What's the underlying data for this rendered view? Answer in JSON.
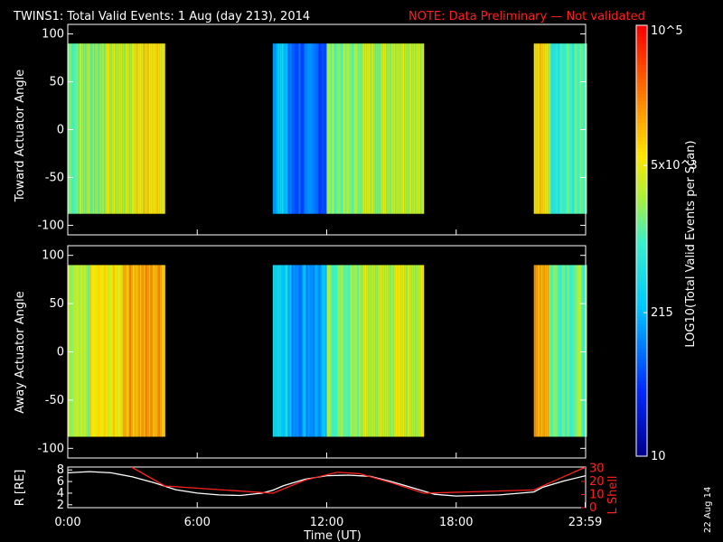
{
  "header": {
    "title": "TWINS1: Total Valid Events:  1 Aug (day 213), 2014",
    "note": "NOTE: Data Preliminary — Not validated"
  },
  "stamp": "22 Aug 14",
  "colorbar": {
    "label": "LOG10(Total Valid Events per Scan)",
    "ticks": [
      {
        "text": "10",
        "value": 10
      },
      {
        "text": "215",
        "value": 215
      },
      {
        "text": "5x10^3",
        "value": 5000
      },
      {
        "text": "10^5",
        "value": 100000
      }
    ],
    "scale": "log",
    "range": [
      10,
      100000
    ]
  },
  "chart_data": [
    {
      "type": "heatmap",
      "ylabel": "Toward Actuator Angle",
      "xlabel": "",
      "ylim": [
        -110,
        110
      ],
      "xlim_hours": [
        0,
        24
      ],
      "yticks": [
        100,
        50,
        0,
        -50,
        -100
      ],
      "data_angle_range": [
        -88,
        90
      ],
      "segments": [
        {
          "start_hour": 0.0,
          "end_hour": 0.55,
          "level": 0.55
        },
        {
          "start_hour": 0.55,
          "end_hour": 1.6,
          "level": 0.58
        },
        {
          "start_hour": 1.6,
          "end_hour": 3.0,
          "level": 0.63
        },
        {
          "start_hour": 3.0,
          "end_hour": 4.5,
          "level": 0.7
        },
        {
          "start_hour": 9.5,
          "end_hour": 10.2,
          "level": 0.35
        },
        {
          "start_hour": 10.2,
          "end_hour": 12.0,
          "level": 0.22
        },
        {
          "start_hour": 12.0,
          "end_hour": 13.5,
          "level": 0.56
        },
        {
          "start_hour": 13.5,
          "end_hour": 15.0,
          "level": 0.62
        },
        {
          "start_hour": 15.0,
          "end_hour": 16.5,
          "level": 0.65
        },
        {
          "start_hour": 21.6,
          "end_hour": 22.3,
          "level": 0.7
        },
        {
          "start_hour": 22.3,
          "end_hour": 24.0,
          "level": 0.5
        }
      ]
    },
    {
      "type": "heatmap",
      "ylabel": "Away Actuator Angle",
      "xlabel": "",
      "ylim": [
        -110,
        110
      ],
      "xlim_hours": [
        0,
        24
      ],
      "yticks": [
        100,
        50,
        0,
        -50,
        -100
      ],
      "data_angle_range": [
        -88,
        90
      ],
      "segments": [
        {
          "start_hour": 0.0,
          "end_hour": 1.0,
          "level": 0.58
        },
        {
          "start_hour": 1.0,
          "end_hour": 2.5,
          "level": 0.68
        },
        {
          "start_hour": 2.5,
          "end_hour": 4.5,
          "level": 0.78
        },
        {
          "start_hour": 9.5,
          "end_hour": 10.2,
          "level": 0.42
        },
        {
          "start_hour": 10.2,
          "end_hour": 12.0,
          "level": 0.3
        },
        {
          "start_hour": 12.0,
          "end_hour": 13.5,
          "level": 0.55
        },
        {
          "start_hour": 13.5,
          "end_hour": 15.0,
          "level": 0.62
        },
        {
          "start_hour": 15.0,
          "end_hour": 16.5,
          "level": 0.64
        },
        {
          "start_hour": 21.6,
          "end_hour": 22.3,
          "level": 0.8
        },
        {
          "start_hour": 22.3,
          "end_hour": 24.0,
          "level": 0.55
        }
      ]
    },
    {
      "type": "line",
      "xlabel": "Time (UT)",
      "ylabel": "R [RE]",
      "y2label": "L Shell",
      "xticks": [
        "0:00",
        "6:00",
        "12:00",
        "18:00",
        "23:59"
      ],
      "xtick_hours": [
        0,
        6,
        12,
        18,
        23.98
      ],
      "yticks_left": [
        2,
        4,
        6,
        8
      ],
      "yticks_right": [
        0,
        10,
        20,
        30
      ],
      "ylim_left": [
        1.5,
        8.5
      ],
      "ylim_right": [
        0,
        31
      ],
      "series": [
        {
          "name": "R",
          "color": "#ffffff",
          "axis": "left",
          "x_hours": [
            0,
            1,
            2,
            3,
            4,
            5,
            6,
            7,
            8,
            9,
            9.5,
            10,
            11,
            12,
            13,
            14,
            15,
            16,
            17,
            18,
            19,
            20,
            21,
            21.6,
            22,
            23,
            24
          ],
          "y": [
            7.5,
            7.7,
            7.5,
            6.8,
            5.8,
            4.6,
            4.0,
            3.7,
            3.6,
            4.0,
            4.5,
            5.3,
            6.4,
            7.0,
            7.1,
            6.9,
            6.0,
            4.9,
            3.8,
            3.5,
            3.6,
            3.7,
            4.0,
            4.2,
            5.0,
            6.1,
            7.0
          ]
        },
        {
          "name": "L Shell",
          "color": "#ff2020",
          "axis": "right",
          "x_hours": [
            2.95,
            4.5,
            9.5,
            11,
            12.5,
            13.5,
            15,
            16.5,
            21.6,
            24
          ],
          "y": [
            31,
            16.5,
            11,
            21,
            27,
            26,
            19,
            11,
            13.5,
            31
          ]
        }
      ]
    }
  ]
}
